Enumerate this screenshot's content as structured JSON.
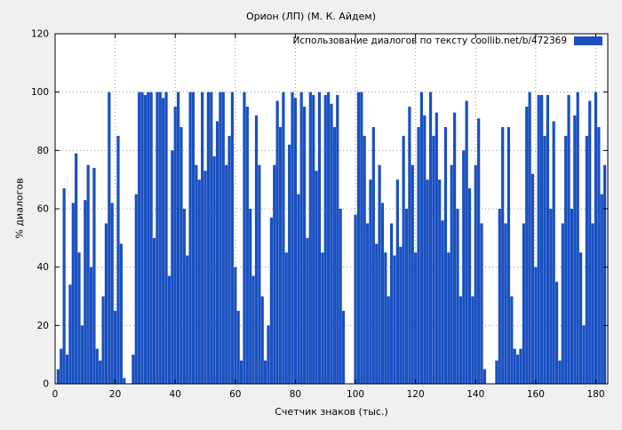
{
  "page": {
    "background": "#f0f0f0",
    "plot_background": "#ffffff",
    "grid_color": "#9a9a9a",
    "border_color": "#000000"
  },
  "chart_data": {
    "type": "bar",
    "title": "Орион (ЛП) (М. К. Айдем)",
    "legend": "Использование диалогов по тексту  coollib.net/b/472369",
    "xlabel": "Счетчик знаков (тыс.)",
    "ylabel": "% диалогов",
    "xlim": [
      0,
      184
    ],
    "ylim": [
      0,
      120
    ],
    "xticks": [
      0,
      20,
      40,
      60,
      80,
      100,
      120,
      140,
      160,
      180
    ],
    "yticks": [
      0,
      20,
      40,
      60,
      80,
      100,
      120
    ],
    "grid": true,
    "legend_position": "top-right-inside",
    "bar_color": "#1a50c0",
    "x_start": 0,
    "x_step": 1,
    "values": [
      0,
      5,
      12,
      67,
      10,
      34,
      62,
      79,
      45,
      20,
      63,
      75,
      40,
      74,
      12,
      8,
      30,
      55,
      100,
      62,
      25,
      85,
      48,
      2,
      0,
      0,
      10,
      65,
      100,
      100,
      99,
      100,
      100,
      50,
      100,
      100,
      98,
      100,
      37,
      80,
      95,
      100,
      88,
      60,
      44,
      100,
      100,
      75,
      70,
      100,
      73,
      100,
      100,
      78,
      90,
      100,
      100,
      75,
      85,
      100,
      40,
      25,
      8,
      100,
      95,
      60,
      37,
      92,
      75,
      30,
      8,
      20,
      57,
      75,
      97,
      88,
      100,
      45,
      82,
      100,
      98,
      65,
      100,
      95,
      50,
      100,
      99,
      73,
      100,
      45,
      99,
      100,
      96,
      88,
      99,
      60,
      25,
      0,
      0,
      0,
      58,
      100,
      100,
      85,
      55,
      70,
      88,
      48,
      75,
      62,
      45,
      30,
      55,
      44,
      70,
      47,
      85,
      60,
      95,
      75,
      45,
      88,
      100,
      92,
      70,
      100,
      85,
      93,
      70,
      56,
      88,
      45,
      75,
      93,
      60,
      30,
      80,
      97,
      67,
      30,
      75,
      91,
      55,
      5,
      0,
      0,
      0,
      8,
      60,
      88,
      55,
      88,
      30,
      12,
      10,
      12,
      55,
      95,
      100,
      72,
      40,
      99,
      99,
      85,
      99,
      60,
      90,
      35,
      8,
      55,
      85,
      99,
      60,
      92,
      100,
      45,
      20,
      85,
      97,
      55,
      100,
      88,
      65,
      75
    ]
  }
}
